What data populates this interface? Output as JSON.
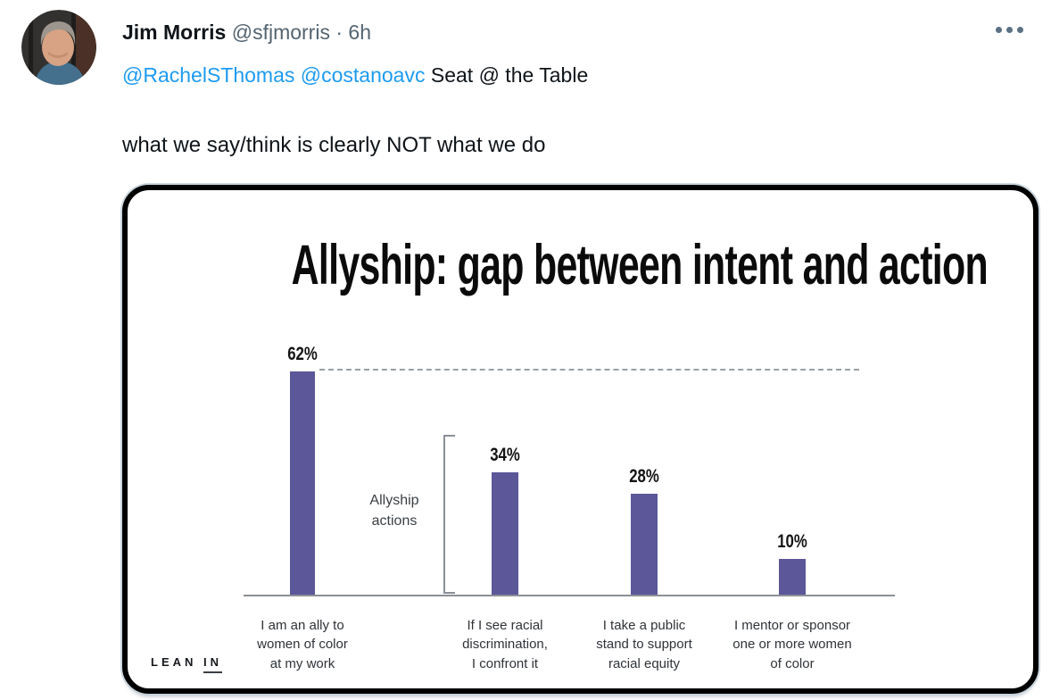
{
  "tweet": {
    "author_name": "Jim Morris",
    "author_handle": "@sfjmorris",
    "timestamp_separator": "·",
    "timestamp": "6h",
    "reply_mentions": [
      "@RachelSThomas",
      "@costanoavc"
    ],
    "reply_text": "Seat @ the Table",
    "body_text": "what we say/think is clearly NOT what we do"
  },
  "colors": {
    "mention_blue": "#1d9bf0",
    "muted_gray": "#536471",
    "text_black": "#0f1419",
    "bar_purple": "#5c5799"
  },
  "chart_data": {
    "type": "bar",
    "title": "Allyship: gap between intent and action",
    "categories": [
      "I am an ally to\nwomen of color\nat my work",
      "If I see racial\ndiscrimination,\nI confront it",
      "I take a public\nstand to support\nracial equity",
      "I mentor or sponsor\none or more women\nof color"
    ],
    "values": [
      62,
      34,
      28,
      10
    ],
    "value_labels": [
      "62%",
      "34%",
      "28%",
      "10%"
    ],
    "bracket_annotation": "Allyship\nactions",
    "reference_line": {
      "style": "dashed",
      "value": 62,
      "note": "horizontal dashed line at top of first bar extending across chart"
    },
    "ylim": [
      0,
      65
    ],
    "grid": false,
    "legend": false,
    "bar_color": "#5c5799",
    "source_logo": {
      "word1": "LEAN",
      "word2": "IN"
    }
  }
}
